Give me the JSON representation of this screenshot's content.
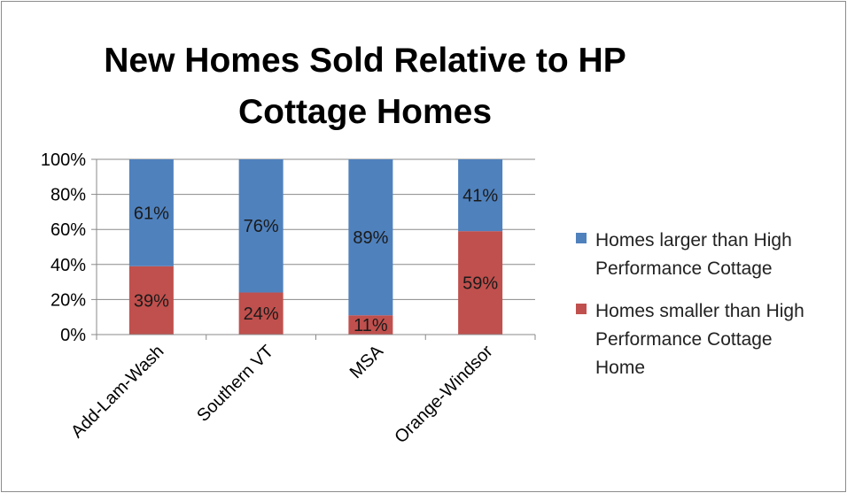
{
  "chart_data": {
    "type": "bar",
    "stacked": true,
    "title_lines": [
      "New Homes Sold Relative to HP",
      "Cottage Homes"
    ],
    "categories": [
      "Add-Lam-Wash",
      "Southern VT",
      "MSA",
      "Orange-Windsor"
    ],
    "series": [
      {
        "name_lines": [
          "Homes larger than High",
          "Performance Cottage"
        ],
        "values": [
          61,
          76,
          89,
          41
        ],
        "labels": [
          "61%",
          "76%",
          "89%",
          "41%"
        ],
        "color": "#4f81bd"
      },
      {
        "name_lines": [
          "Homes smaller than High",
          "Performance Cottage",
          "Home"
        ],
        "values": [
          39,
          24,
          11,
          59
        ],
        "labels": [
          "39%",
          "24%",
          "11%",
          "59%"
        ],
        "color": "#c0504d"
      }
    ],
    "yticks": [
      "0%",
      "20%",
      "40%",
      "60%",
      "80%",
      "100%"
    ],
    "ylim": [
      0,
      100
    ],
    "grid": true,
    "legend_position": "right"
  }
}
